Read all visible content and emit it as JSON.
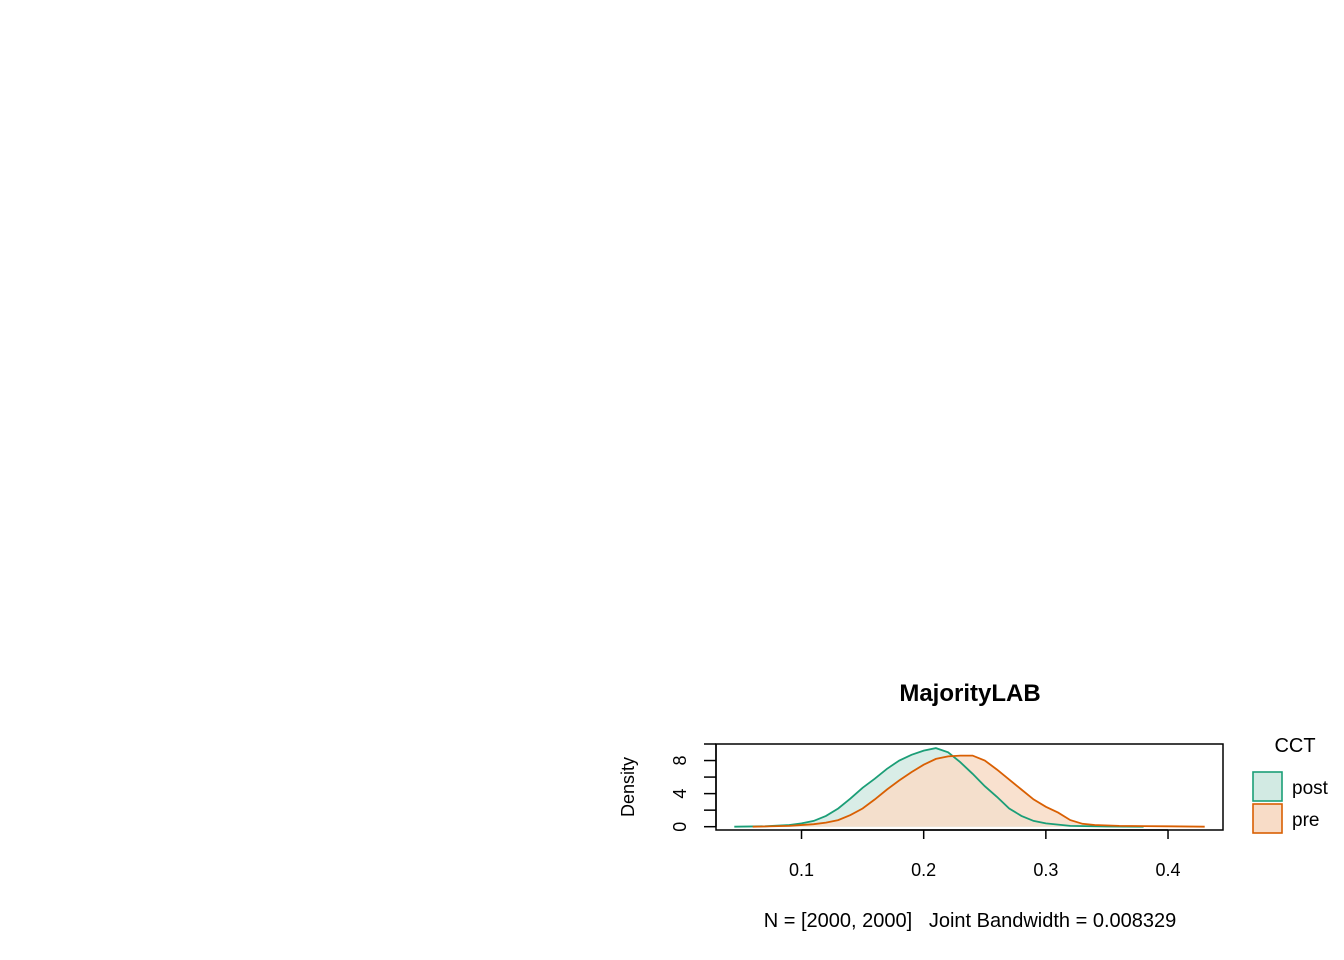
{
  "chart_data": {
    "type": "area",
    "title": "MajorityLAB",
    "xlabel": "N = [2000, 2000]   Joint Bandwidth = 0.008329",
    "ylabel": "Density",
    "xlim": [
      0.03,
      0.445
    ],
    "ylim": [
      -0.4,
      10
    ],
    "x_ticks": [
      "0.1",
      "0.2",
      "0.3",
      "0.4"
    ],
    "y_ticks": [
      "0",
      "4",
      "8"
    ],
    "y_minor_ticks": [
      2,
      6,
      10
    ],
    "grid": false,
    "legend": {
      "title": "CCT",
      "position": "right",
      "entries": [
        "post",
        "pre"
      ]
    },
    "series": [
      {
        "name": "post",
        "color": "#1B9E77",
        "fill": "#D2EAE3",
        "x": [
          0.045,
          0.07,
          0.09,
          0.1,
          0.11,
          0.12,
          0.13,
          0.14,
          0.15,
          0.16,
          0.17,
          0.18,
          0.19,
          0.2,
          0.21,
          0.22,
          0.23,
          0.24,
          0.25,
          0.26,
          0.27,
          0.28,
          0.29,
          0.3,
          0.32,
          0.35,
          0.38
        ],
        "y": [
          0.0,
          0.05,
          0.2,
          0.4,
          0.7,
          1.3,
          2.2,
          3.4,
          4.7,
          5.8,
          7.0,
          8.0,
          8.7,
          9.2,
          9.5,
          9.0,
          7.8,
          6.4,
          4.9,
          3.6,
          2.2,
          1.3,
          0.7,
          0.4,
          0.1,
          0.02,
          0.0
        ]
      },
      {
        "name": "pre",
        "color": "#D95F02",
        "fill": "#F8DCC7",
        "x": [
          0.06,
          0.09,
          0.11,
          0.12,
          0.13,
          0.14,
          0.15,
          0.16,
          0.17,
          0.18,
          0.19,
          0.2,
          0.21,
          0.22,
          0.23,
          0.24,
          0.25,
          0.26,
          0.27,
          0.28,
          0.29,
          0.3,
          0.31,
          0.32,
          0.33,
          0.34,
          0.36,
          0.4,
          0.43
        ],
        "y": [
          0.0,
          0.1,
          0.3,
          0.5,
          0.8,
          1.4,
          2.2,
          3.3,
          4.5,
          5.6,
          6.6,
          7.5,
          8.2,
          8.5,
          8.6,
          8.6,
          8.0,
          6.9,
          5.7,
          4.5,
          3.3,
          2.4,
          1.7,
          0.8,
          0.35,
          0.2,
          0.1,
          0.05,
          0.0
        ]
      }
    ]
  }
}
